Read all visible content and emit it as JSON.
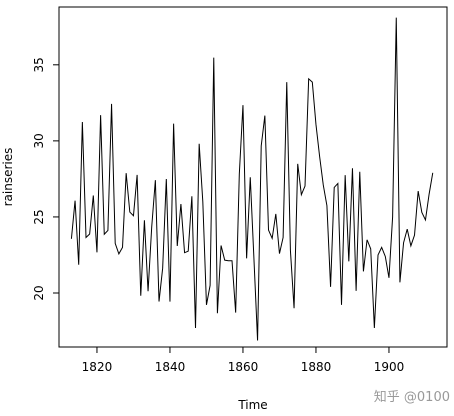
{
  "chart_data": {
    "type": "line",
    "xlabel": "Time",
    "ylabel": "rainseries",
    "watermark": "知乎 @0100",
    "x": [
      1813,
      1814,
      1815,
      1816,
      1817,
      1818,
      1819,
      1820,
      1821,
      1822,
      1823,
      1824,
      1825,
      1826,
      1827,
      1828,
      1829,
      1830,
      1831,
      1832,
      1833,
      1834,
      1835,
      1836,
      1837,
      1838,
      1839,
      1840,
      1841,
      1842,
      1843,
      1844,
      1845,
      1846,
      1847,
      1848,
      1849,
      1850,
      1851,
      1852,
      1853,
      1854,
      1855,
      1856,
      1857,
      1858,
      1859,
      1860,
      1861,
      1862,
      1863,
      1864,
      1865,
      1866,
      1867,
      1868,
      1869,
      1870,
      1871,
      1872,
      1873,
      1874,
      1875,
      1876,
      1877,
      1878,
      1879,
      1880,
      1881,
      1882,
      1883,
      1884,
      1885,
      1886,
      1887,
      1888,
      1889,
      1890,
      1891,
      1892,
      1893,
      1894,
      1895,
      1896,
      1897,
      1898,
      1899,
      1900,
      1901,
      1902,
      1903,
      1904,
      1905,
      1906,
      1907,
      1908,
      1909,
      1910,
      1911,
      1912
    ],
    "series": [
      {
        "name": "rainseries",
        "color": "#000000",
        "values": [
          23.56,
          26.07,
          21.86,
          31.24,
          23.65,
          23.88,
          26.41,
          22.67,
          31.69,
          23.86,
          24.11,
          32.43,
          23.26,
          22.57,
          23.0,
          27.88,
          25.32,
          25.08,
          27.76,
          19.82,
          24.78,
          20.12,
          24.34,
          27.42,
          19.44,
          21.63,
          27.49,
          19.43,
          31.13,
          23.09,
          25.85,
          22.65,
          22.75,
          26.36,
          17.7,
          29.81,
          26.0,
          19.22,
          20.5,
          35.47,
          18.67,
          23.12,
          22.16,
          22.12,
          22.12,
          18.71,
          27.82,
          32.35,
          22.28,
          27.61,
          22.28,
          16.88,
          29.67,
          31.66,
          24.14,
          23.59,
          25.2,
          22.59,
          23.65,
          33.86,
          22.8,
          19.0,
          28.49,
          26.46,
          27.03,
          34.08,
          33.86,
          31.08,
          28.98,
          27.1,
          25.74,
          20.4,
          26.94,
          27.2,
          19.22,
          27.75,
          22.08,
          28.2,
          20.14,
          27.97,
          21.42,
          23.5,
          22.9,
          17.7,
          22.5,
          23.0,
          22.4,
          21.0,
          25.0,
          38.1,
          20.7,
          23.3,
          24.2,
          23.1,
          23.8,
          26.7,
          25.3,
          24.8,
          26.5,
          27.9
        ]
      }
    ],
    "xlim": [
      1809.6,
      1915.9
    ],
    "ylim": [
      16.45,
      38.8
    ],
    "xticks": [
      1820,
      1840,
      1860,
      1880,
      1900
    ],
    "yticks": [
      20,
      25,
      30,
      35
    ]
  }
}
